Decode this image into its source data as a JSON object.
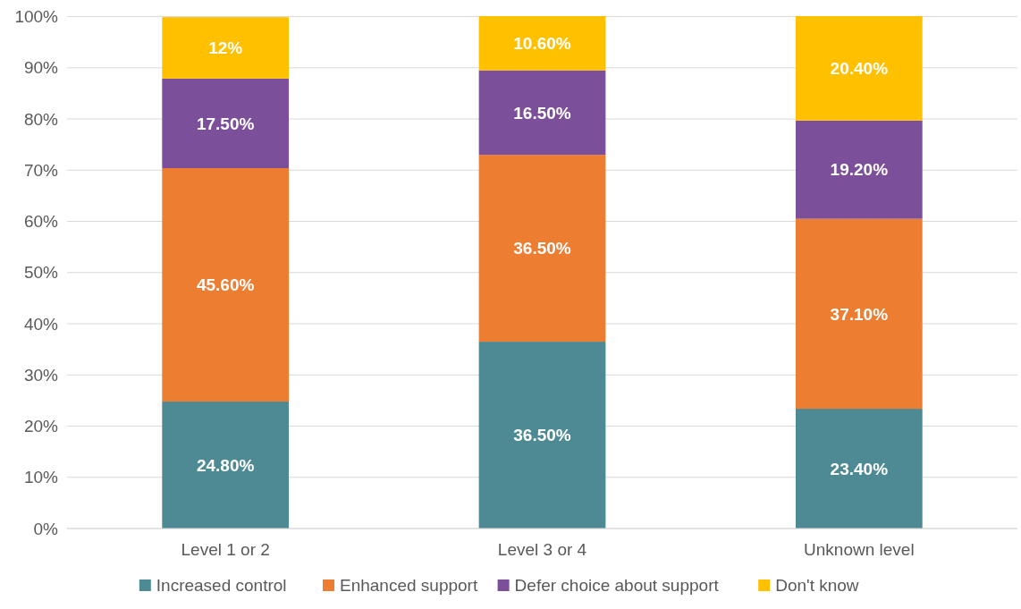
{
  "chart_data": {
    "type": "bar",
    "stacked": true,
    "categories": [
      "Level 1 or 2",
      "Level 3 or 4",
      "Unknown level"
    ],
    "series": [
      {
        "name": "Increased control",
        "color": "#4e8a94",
        "values": [
          24.8,
          36.5,
          23.4
        ],
        "value_labels": [
          "24.80%",
          "36.50%",
          "23.40%"
        ]
      },
      {
        "name": "Enhanced support",
        "color": "#ed7d31",
        "values": [
          45.6,
          36.5,
          37.1
        ],
        "value_labels": [
          "45.60%",
          "36.50%",
          "37.10%"
        ]
      },
      {
        "name": "Defer choice about support",
        "color": "#7c4f9a",
        "values": [
          17.5,
          16.5,
          19.2
        ],
        "value_labels": [
          "17.50%",
          "16.50%",
          "19.20%"
        ]
      },
      {
        "name": "Don't know",
        "color": "#ffc000",
        "values": [
          12,
          10.6,
          20.4
        ],
        "value_labels": [
          "12%",
          "10.60%",
          "20.40%"
        ]
      }
    ],
    "ylim": [
      0,
      100.1
    ],
    "yticks": [
      {
        "value": 0,
        "label": "0%"
      },
      {
        "value": 10,
        "label": "10%"
      },
      {
        "value": 20,
        "label": "20%"
      },
      {
        "value": 30,
        "label": "30%"
      },
      {
        "value": 40,
        "label": "40%"
      },
      {
        "value": 50,
        "label": "50%"
      },
      {
        "value": 60,
        "label": "60%"
      },
      {
        "value": 70,
        "label": "70%"
      },
      {
        "value": 80,
        "label": "80%"
      },
      {
        "value": 90,
        "label": "90%"
      },
      {
        "value": 100,
        "label": "100%"
      }
    ],
    "grid": "y",
    "legend": "bottom"
  }
}
